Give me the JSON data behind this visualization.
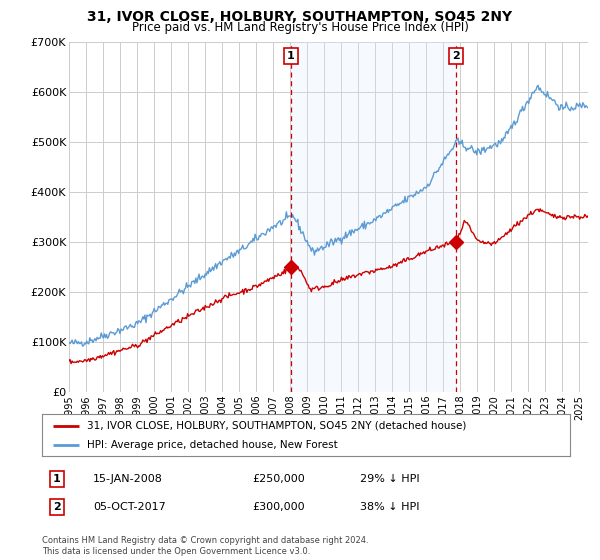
{
  "title": "31, IVOR CLOSE, HOLBURY, SOUTHAMPTON, SO45 2NY",
  "subtitle": "Price paid vs. HM Land Registry's House Price Index (HPI)",
  "legend_line1": "31, IVOR CLOSE, HOLBURY, SOUTHAMPTON, SO45 2NY (detached house)",
  "legend_line2": "HPI: Average price, detached house, New Forest",
  "annotation1_label": "1",
  "annotation1_date": "15-JAN-2008",
  "annotation1_price": "£250,000",
  "annotation1_hpi": "29% ↓ HPI",
  "annotation2_label": "2",
  "annotation2_date": "05-OCT-2017",
  "annotation2_price": "£300,000",
  "annotation2_hpi": "38% ↓ HPI",
  "footer": "Contains HM Land Registry data © Crown copyright and database right 2024.\nThis data is licensed under the Open Government Licence v3.0.",
  "ylim": [
    0,
    700000
  ],
  "yticks": [
    0,
    100000,
    200000,
    300000,
    400000,
    500000,
    600000,
    700000
  ],
  "ytick_labels": [
    "£0",
    "£100K",
    "£200K",
    "£300K",
    "£400K",
    "£500K",
    "£600K",
    "£700K"
  ],
  "red_line_color": "#cc0000",
  "blue_line_color": "#5b9bd5",
  "shade_color": "#ddeeff",
  "vline_color": "#cc0000",
  "background_color": "#ffffff",
  "plot_bg_color": "#ffffff",
  "grid_color": "#cccccc",
  "vline1_x": 2008.04,
  "vline2_x": 2017.75,
  "point1_x": 2008.04,
  "point1_y": 250000,
  "point2_x": 2017.75,
  "point2_y": 300000,
  "xmin": 1995,
  "xmax": 2025.5
}
